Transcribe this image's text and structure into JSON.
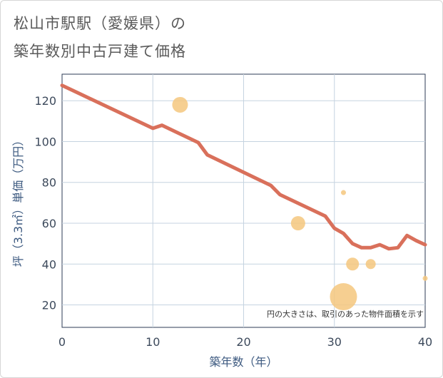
{
  "title_line1": "松山市駅駅（愛媛県）の",
  "title_line2": "築年数別中古戸建て価格",
  "chart_data": {
    "type": "line",
    "xlabel": "築年数（年）",
    "ylabel": "坪（3.3㎡）単価（万円）",
    "xlim": [
      0,
      40
    ],
    "ylim": [
      9,
      133
    ],
    "x_ticks": [
      0,
      10,
      20,
      30,
      40
    ],
    "y_ticks": [
      20,
      40,
      60,
      80,
      100,
      120
    ],
    "grid": true,
    "note": "円の大きさは、取引のあった物件面積を示す",
    "series": [
      {
        "name": "trend",
        "color": "#d9705b",
        "x": [
          0,
          10,
          11,
          15,
          16,
          23,
          24,
          29,
          30,
          31,
          32,
          33,
          34,
          35,
          36,
          37,
          38,
          39,
          40
        ],
        "y": [
          127.5,
          106.5,
          108,
          99.5,
          93.5,
          78.5,
          74,
          63.5,
          57.5,
          55,
          50,
          48,
          48,
          49.5,
          47.5,
          48,
          54,
          51.5,
          49.5
        ]
      }
    ],
    "bubbles": {
      "color": "#f5c77e",
      "points": [
        {
          "x": 13,
          "y": 118,
          "size": 11
        },
        {
          "x": 26,
          "y": 60,
          "size": 10
        },
        {
          "x": 31,
          "y": 75,
          "size": 3.5
        },
        {
          "x": 31,
          "y": 24,
          "size": 19
        },
        {
          "x": 32,
          "y": 40,
          "size": 9
        },
        {
          "x": 34,
          "y": 40,
          "size": 7
        },
        {
          "x": 40,
          "y": 33,
          "size": 3.5
        }
      ]
    }
  }
}
